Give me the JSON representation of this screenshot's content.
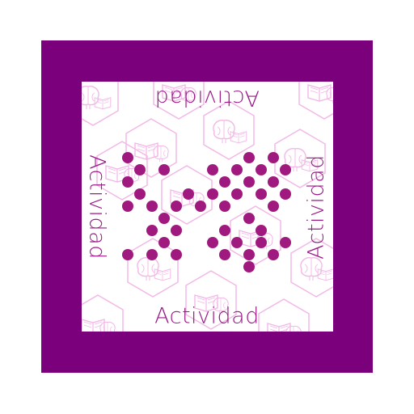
{
  "card": {
    "word_top": "Actividad",
    "word_bottom": "Actividad",
    "word_left": "Actividad",
    "word_right": "Actividad"
  },
  "colors": {
    "frame": "#7b007b",
    "card": "#ffffff",
    "dots": "#a0197f",
    "text": "#9a1a86",
    "pattern": "#f2b8e6"
  },
  "pattern": {
    "icons": [
      "book-icon",
      "brain-icon"
    ]
  },
  "dot_pattern": {
    "dot_count": 43
  }
}
